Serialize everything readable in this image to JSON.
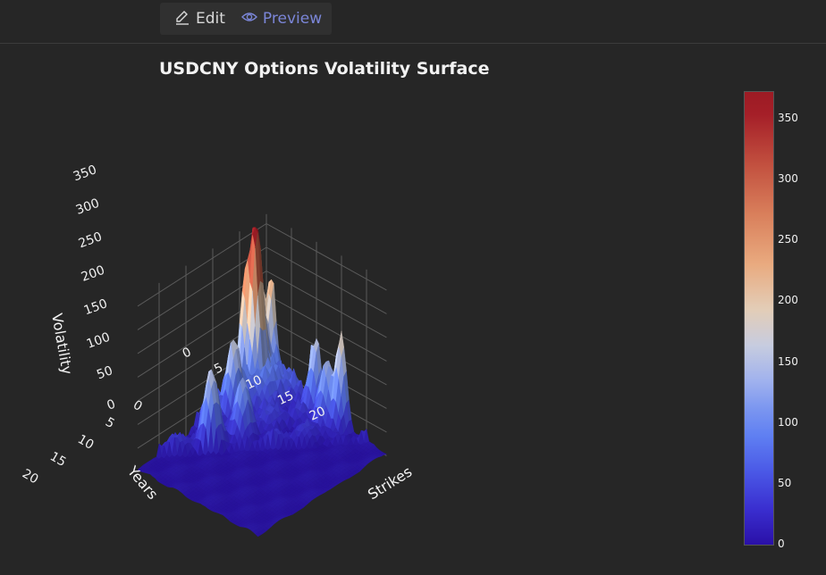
{
  "toolbar": {
    "edit_label": "Edit",
    "preview_label": "Preview",
    "edit_icon": "pencil-icon",
    "preview_icon": "eye-icon"
  },
  "chart_data": {
    "type": "surface3d",
    "title": "USDCNY Options Volatility Surface",
    "axes": {
      "x": {
        "label": "Strikes",
        "ticks": [
          "0",
          "5",
          "10",
          "15",
          "20"
        ],
        "range": [
          0,
          24
        ]
      },
      "y": {
        "label": "Years",
        "ticks": [
          "0",
          "5",
          "10",
          "15",
          "20"
        ],
        "range": [
          0,
          24
        ]
      },
      "z": {
        "label": "Volatility",
        "ticks": [
          "0",
          "50",
          "100",
          "150",
          "200",
          "250",
          "300",
          "350"
        ],
        "range": [
          0,
          370
        ]
      }
    },
    "colorbar": {
      "ticks": [
        "0",
        "50",
        "100",
        "150",
        "200",
        "250",
        "300",
        "350"
      ],
      "range": [
        0,
        372
      ],
      "colors": [
        "#2a10a8",
        "#5f7ff2",
        "#c7ccdf",
        "#e9aa7f",
        "#9c1b24"
      ]
    },
    "peaks": [
      {
        "strike": 1,
        "year": 3,
        "volatility": 372
      },
      {
        "strike": 0,
        "year": 4,
        "volatility": 230
      },
      {
        "strike": 1,
        "year": 0,
        "volatility": 200
      },
      {
        "strike": 0,
        "year": 2,
        "volatility": 260
      },
      {
        "strike": 4,
        "year": 14,
        "volatility": 155
      },
      {
        "strike": 2,
        "year": 8,
        "volatility": 150
      },
      {
        "strike": 15,
        "year": 0,
        "volatility": 190
      },
      {
        "strike": 10,
        "year": 0,
        "volatility": 160
      },
      {
        "strike": 13,
        "year": 1,
        "volatility": 135
      },
      {
        "strike": 6,
        "year": 10,
        "volatility": 120
      }
    ],
    "grid": true,
    "background": "#262626"
  }
}
